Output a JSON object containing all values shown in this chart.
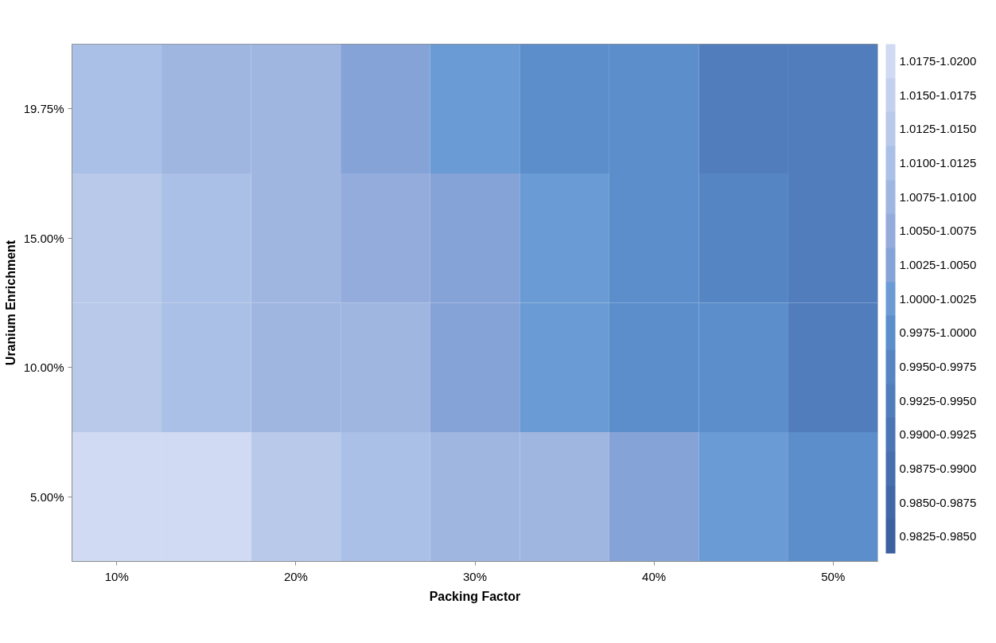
{
  "chart_data": {
    "type": "heatmap",
    "xlabel": "Packing Factor",
    "ylabel": "Uranium Enrichment",
    "categories": [
      "10%",
      null,
      "20%",
      null,
      "30%",
      null,
      "40%",
      null,
      "50%"
    ],
    "y_categories": [
      "19.75%",
      "15.00%",
      "10.00%",
      "5.00%"
    ],
    "cells": [
      [
        1.0125,
        1.01,
        1.0075,
        1.005,
        1.0025,
        1.0,
        0.9975,
        0.995,
        0.9925
      ],
      [
        1.0138,
        1.0113,
        1.0088,
        1.0063,
        1.0038,
        1.0013,
        0.9988,
        0.9963,
        0.9938
      ],
      [
        1.015,
        1.0125,
        1.01,
        1.0075,
        1.005,
        1.0025,
        1.0,
        0.9975,
        0.995
      ],
      [
        1.02,
        1.0175,
        1.015,
        1.0125,
        1.01,
        1.0075,
        1.005,
        1.0025,
        1.0
      ]
    ],
    "clim": [
      0.9825,
      1.02
    ],
    "cticks": [
      {
        "value": 1.01875,
        "label": "1.0175-1.0200"
      },
      {
        "value": 1.01625,
        "label": "1.0150-1.0175"
      },
      {
        "value": 1.01375,
        "label": "1.0125-1.0150"
      },
      {
        "value": 1.01125,
        "label": "1.0100-1.0125"
      },
      {
        "value": 1.00875,
        "label": "1.0075-1.0100"
      },
      {
        "value": 1.00625,
        "label": "1.0050-1.0075"
      },
      {
        "value": 1.00375,
        "label": "1.0025-1.0050"
      },
      {
        "value": 1.00125,
        "label": "1.0000-1.0025"
      },
      {
        "value": 0.99875,
        "label": "0.9975-1.0000"
      },
      {
        "value": 0.99625,
        "label": "0.9950-0.9975"
      },
      {
        "value": 0.99375,
        "label": "0.9925-0.9950"
      },
      {
        "value": 0.99125,
        "label": "0.9900-0.9925"
      },
      {
        "value": 0.98875,
        "label": "0.9875-0.9900"
      },
      {
        "value": 0.98625,
        "label": "0.9850-0.9875"
      },
      {
        "value": 0.98375,
        "label": "0.9825-0.9850"
      }
    ],
    "colors": [
      "#d0daf2",
      "#c4d1ee",
      "#b8c9ea",
      "#abc0e6",
      "#9fb6e1",
      "#93acdc",
      "#86a3d7",
      "#6b9bd4",
      "#5b8ecb",
      "#5685c4",
      "#517dbd",
      "#4c75b6",
      "#476eaf",
      "#4267a8",
      "#3d60a1"
    ]
  }
}
